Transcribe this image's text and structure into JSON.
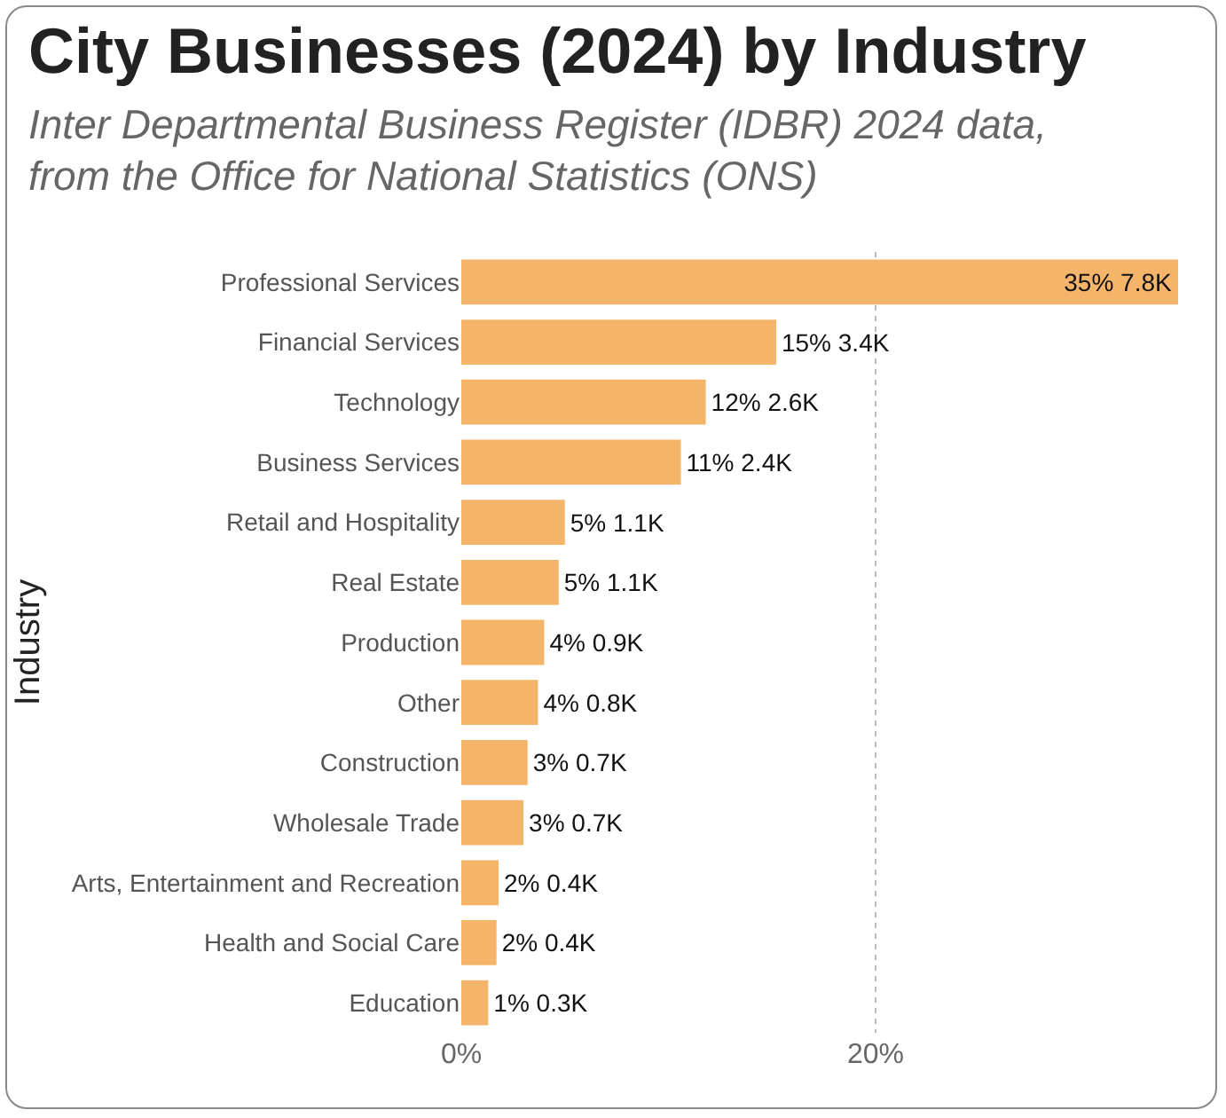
{
  "chart_data": {
    "type": "bar",
    "orientation": "horizontal",
    "title": "City Businesses (2024) by Industry",
    "subtitle": "Inter Departmental Business Register (IDBR) 2024 data, from the Office for National Statistics (ONS)",
    "ylabel": "Industry",
    "categories": [
      "Professional Services",
      "Financial Services",
      "Technology",
      "Business Services",
      "Retail and Hospitality",
      "Real Estate",
      "Production",
      "Other",
      "Construction",
      "Wholesale Trade",
      "Arts, Entertainment and Recreation",
      "Health and Social Care",
      "Education"
    ],
    "values": [
      34.6,
      15.2,
      11.8,
      10.6,
      5.0,
      4.7,
      4.0,
      3.7,
      3.2,
      3.0,
      1.8,
      1.7,
      1.3
    ],
    "value_labels": [
      "35% 7.8K",
      "15% 3.4K",
      "12% 2.6K",
      "11% 2.4K",
      "5% 1.1K",
      "5% 1.1K",
      "4% 0.9K",
      "4% 0.8K",
      "3% 0.7K",
      "3% 0.7K",
      "2% 0.4K",
      "2% 0.4K",
      "1% 0.3K"
    ],
    "color": "#f4b469",
    "xlim": [
      0,
      34.6
    ],
    "xticks": [
      {
        "value": 0,
        "label": "0%"
      },
      {
        "value": 20,
        "label": "20%"
      }
    ],
    "grid": "x"
  }
}
